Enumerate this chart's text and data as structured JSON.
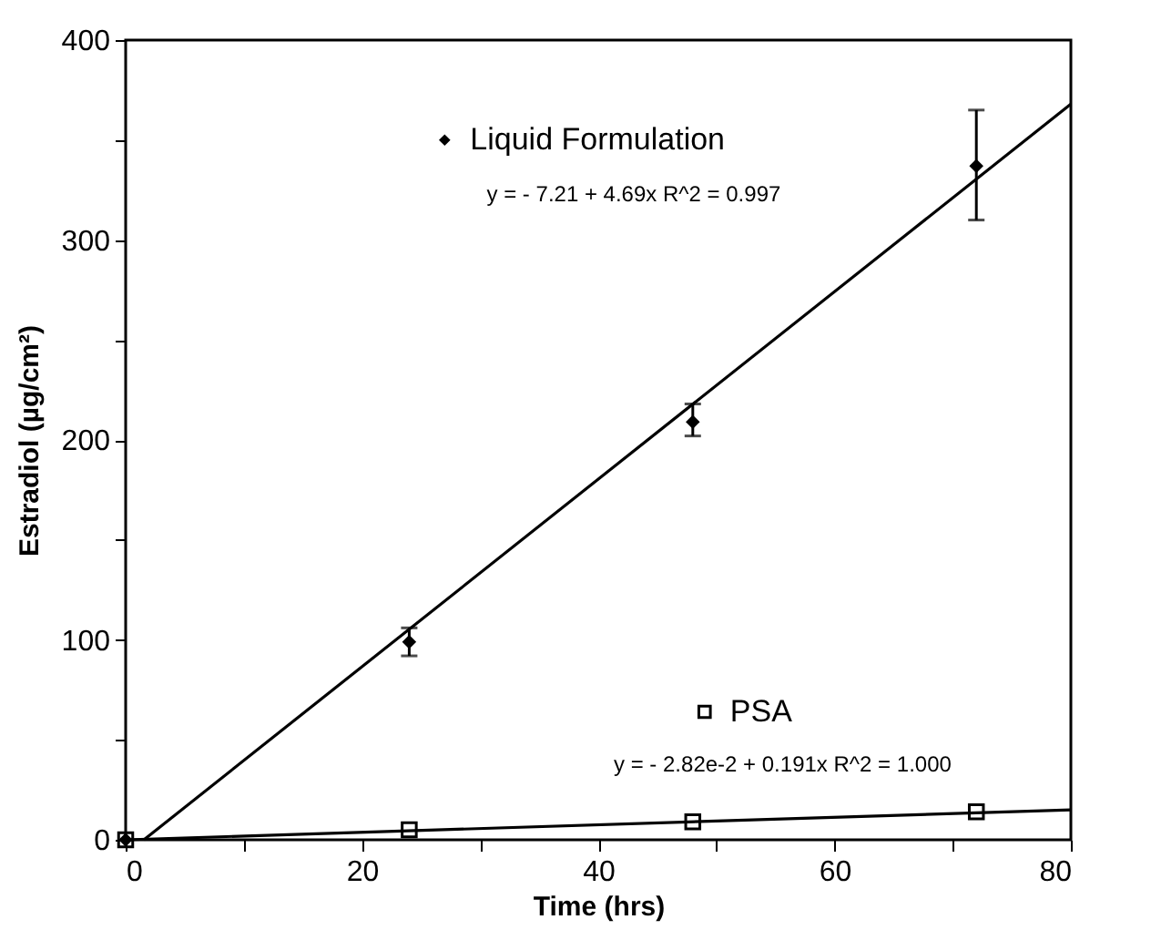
{
  "chart_data": {
    "type": "scatter",
    "xlabel": "Time  (hrs)",
    "ylabel": "Estradiol    (µg/cm²)",
    "xlim": [
      0,
      80
    ],
    "ylim": [
      0,
      400
    ],
    "xticks": [
      0,
      {
        "value": 10,
        "label": null
      },
      20,
      {
        "value": 30,
        "label": null
      },
      40,
      {
        "value": 50,
        "label": null
      },
      60,
      {
        "value": 70,
        "label": null
      },
      80
    ],
    "yticks": [
      0,
      {
        "value": 50,
        "label": null
      },
      100,
      {
        "value": 150,
        "label": null
      },
      200,
      {
        "value": 250,
        "label": null
      },
      300,
      {
        "value": 350,
        "label": null
      },
      400
    ],
    "grid": false,
    "legend": "top",
    "series": [
      {
        "name": "Liquid Formulation",
        "marker": "diamond",
        "color": "#000000",
        "x": [
          0,
          24,
          48,
          72
        ],
        "values": [
          0,
          99,
          209,
          337
        ],
        "errors": [
          null,
          [
            92,
            106
          ],
          [
            202,
            218
          ],
          [
            310,
            365
          ]
        ]
      },
      {
        "name": "PSA",
        "marker": "square",
        "color": "#000000",
        "x": [
          0,
          24,
          48,
          72
        ],
        "values": [
          0,
          5,
          9,
          14
        ]
      },
      {
        "type": "line",
        "marker": "none",
        "color": "#000000",
        "x": [
          1.54,
          80
        ],
        "values": [
          0,
          368
        ]
      },
      {
        "type": "line",
        "marker": "none",
        "color": "#000000",
        "x": [
          0,
          80
        ],
        "values": [
          0,
          15
        ]
      }
    ],
    "annotations": [
      "y =   - 7.21 + 4.69x    R^2 = 0.997",
      "y =   - 2.82e-2 + 0.191x    R^2 = 1.000"
    ]
  }
}
